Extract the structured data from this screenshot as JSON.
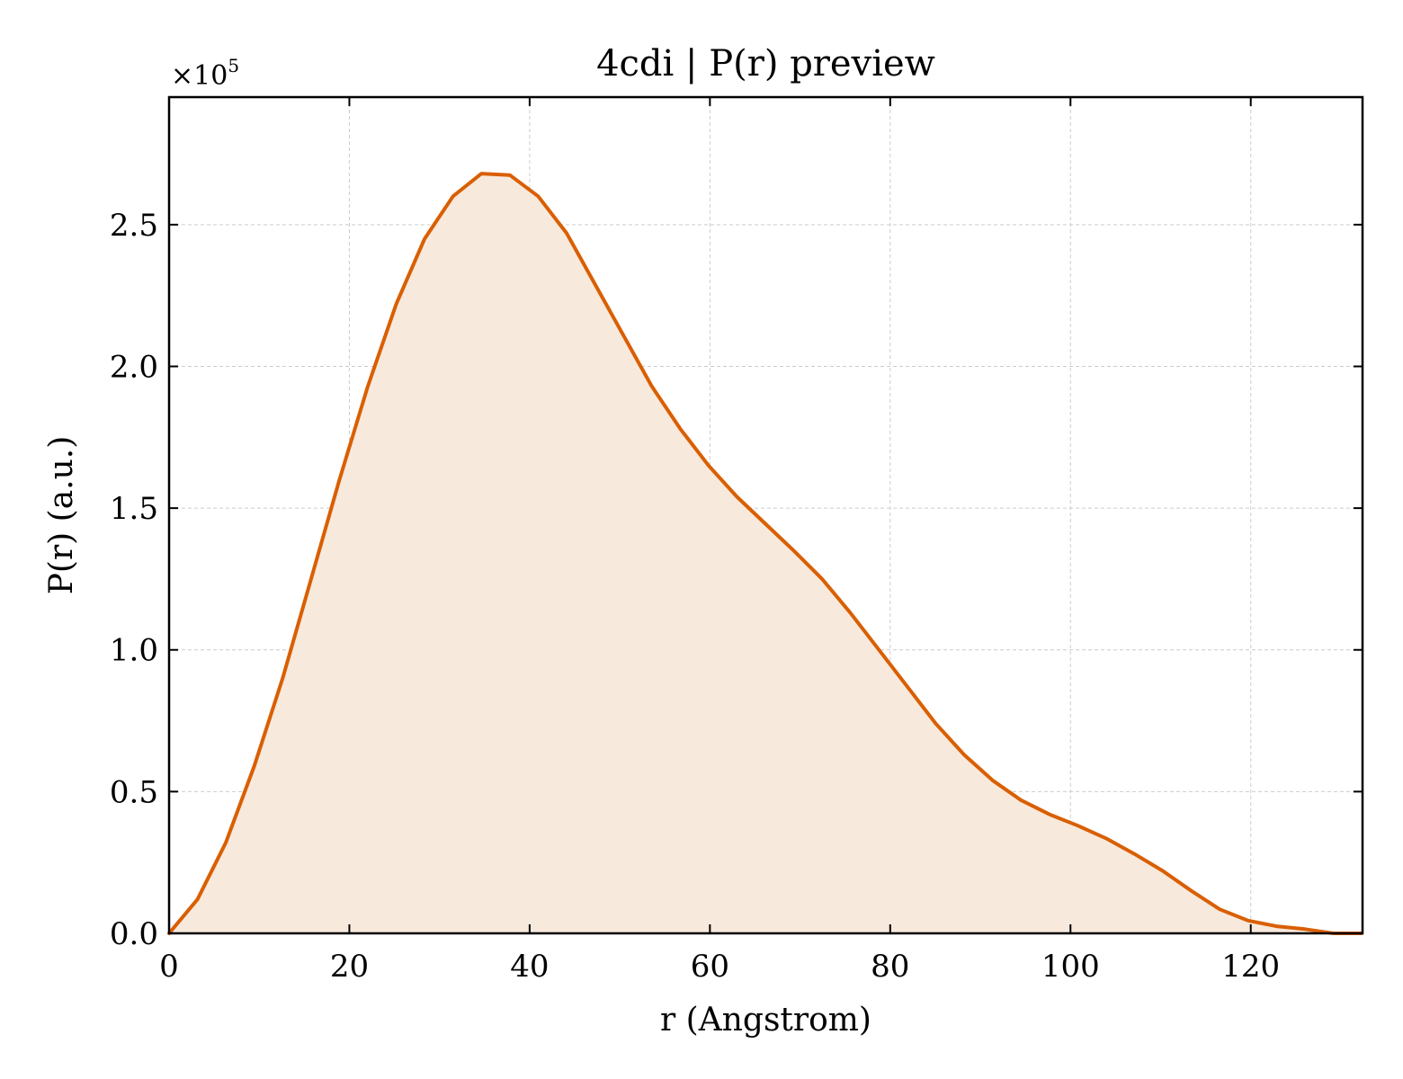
{
  "chart_data": {
    "type": "area",
    "title": "4cdi | P(r) preview",
    "xlabel": "r (Angstrom)",
    "ylabel": "P(r) (a.u.)",
    "y_scale_label": "×10",
    "y_scale_exponent": "5",
    "xlim": [
      0,
      132.4
    ],
    "ylim": [
      0,
      2.95
    ],
    "xticks": [
      0,
      20,
      40,
      60,
      80,
      100,
      120
    ],
    "xtick_labels": [
      "0",
      "20",
      "40",
      "60",
      "80",
      "100",
      "120"
    ],
    "yticks": [
      0,
      0.5,
      1.0,
      1.5,
      2.0,
      2.5
    ],
    "ytick_labels": [
      "0.0",
      "0.5",
      "1.0",
      "1.5",
      "2.0",
      "2.5"
    ],
    "grid": true,
    "line_color": "#d95f02",
    "fill_color": "#f8e9dd",
    "series": [
      {
        "x": [
          0,
          3.15,
          6.3,
          9.45,
          12.6,
          15.75,
          18.9,
          22.05,
          25.2,
          28.35,
          31.5,
          34.65,
          37.8,
          40.95,
          44.1,
          47.25,
          50.4,
          53.55,
          56.7,
          59.85,
          63.0,
          66.15,
          69.3,
          72.45,
          75.6,
          78.75,
          81.9,
          85.05,
          88.2,
          91.35,
          94.5,
          97.65,
          100.8,
          103.95,
          107.1,
          110.25,
          113.4,
          116.55,
          119.7,
          122.85,
          126.0,
          129.15,
          132.3
        ],
        "y": [
          0.0,
          0.12,
          0.32,
          0.59,
          0.9,
          1.25,
          1.6,
          1.93,
          2.22,
          2.45,
          2.6,
          2.68,
          2.675,
          2.6,
          2.47,
          2.29,
          2.11,
          1.93,
          1.78,
          1.65,
          1.54,
          1.445,
          1.35,
          1.25,
          1.13,
          1.0,
          0.87,
          0.74,
          0.63,
          0.54,
          0.47,
          0.42,
          0.38,
          0.335,
          0.28,
          0.22,
          0.15,
          0.085,
          0.045,
          0.025,
          0.015,
          0.0,
          0.0
        ]
      }
    ]
  }
}
